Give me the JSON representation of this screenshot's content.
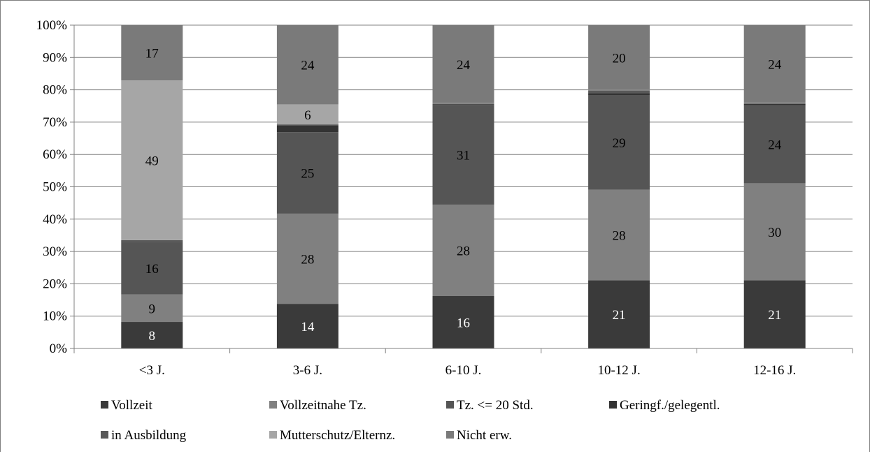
{
  "chart_data": {
    "type": "bar",
    "stacked": true,
    "percent_stacked": true,
    "categories": [
      "<3 J.",
      "3-6 J.",
      "6-10 J.",
      "10-12 J.",
      "12-16 J."
    ],
    "ylim": [
      0,
      100
    ],
    "yticks": [
      "0%",
      "10%",
      "20%",
      "30%",
      "40%",
      "50%",
      "60%",
      "70%",
      "80%",
      "90%",
      "100%"
    ],
    "grid": true,
    "legend_position": "bottom",
    "series": [
      {
        "name": "Vollzeit",
        "color": "#3a3a3a",
        "label_color": "#ffffff",
        "values": [
          8.2,
          13.8,
          16.2,
          21.1,
          21.1
        ],
        "labels": [
          "8",
          "14",
          "16",
          "21",
          "21"
        ]
      },
      {
        "name": "Vollzeitnahe Tz.",
        "color": "#808080",
        "label_color": "#000000",
        "values": [
          8.5,
          27.9,
          28.3,
          28.0,
          30.0
        ],
        "labels": [
          "9",
          "28",
          "28",
          "28",
          "30"
        ]
      },
      {
        "name": "Tz. <= 20 Std.",
        "color": "#555555",
        "label_color": "#000000",
        "values": [
          16.3,
          25.2,
          30.8,
          29.3,
          24.1
        ],
        "labels": [
          "16",
          "25",
          "31",
          "29",
          "24"
        ]
      },
      {
        "name": "Geringf./gelegentl.",
        "color": "#333333",
        "label_color": "#ffffff",
        "values": [
          0.2,
          2.0,
          0.2,
          0.6,
          0.4
        ],
        "labels": [
          "",
          "",
          "",
          "",
          ""
        ]
      },
      {
        "name": "in Ausbildung",
        "color": "#595959",
        "label_color": "#000000",
        "values": [
          0.3,
          0.4,
          0.2,
          0.8,
          0.2
        ],
        "labels": [
          "",
          "",
          "",
          "",
          ""
        ]
      },
      {
        "name": "Mutterschutz/Elternz.",
        "color": "#a6a6a6",
        "label_color": "#000000",
        "values": [
          49.4,
          6.2,
          0.2,
          0.2,
          0.2
        ],
        "labels": [
          "49",
          "6",
          "",
          "",
          ""
        ]
      },
      {
        "name": "Nicht erw.",
        "color": "#7a7a7a",
        "label_color": "#000000",
        "values": [
          17.1,
          24.5,
          24.1,
          20.0,
          24.0
        ],
        "labels": [
          "17",
          "24",
          "24",
          "20",
          "24"
        ]
      }
    ]
  }
}
